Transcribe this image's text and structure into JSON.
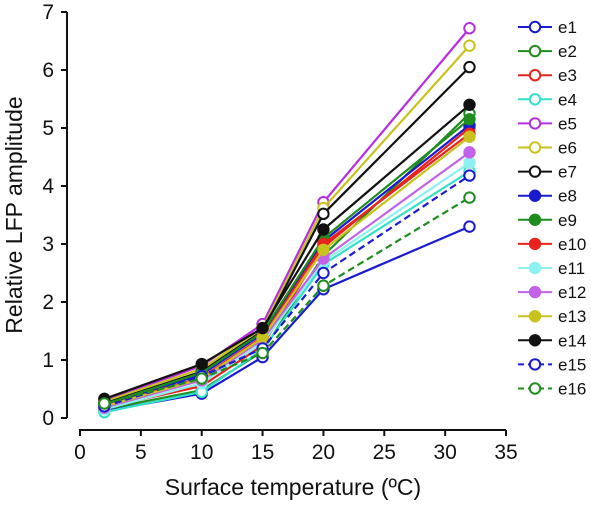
{
  "chart_data": {
    "type": "line",
    "xlabel": "Surface temperature (ºC)",
    "ylabel": "Relative LFP amplitude",
    "xlim": [
      0,
      35
    ],
    "ylim": [
      0,
      7
    ],
    "xticks": [
      "0",
      "5",
      "10",
      "15",
      "20",
      "25",
      "30",
      "35"
    ],
    "yticks": [
      "0",
      "1",
      "2",
      "3",
      "4",
      "5",
      "6",
      "7"
    ],
    "grid": false,
    "legend_position": "right",
    "x": [
      2,
      10,
      15,
      20,
      32
    ],
    "series": [
      {
        "name": "e1",
        "color": "#1a1ad0",
        "marker": "open",
        "dashed": false,
        "values": [
          0.12,
          0.42,
          1.05,
          2.22,
          3.3
        ]
      },
      {
        "name": "e2",
        "color": "#1e8c1e",
        "marker": "open",
        "dashed": false,
        "values": [
          0.15,
          0.48,
          1.15,
          2.8,
          5.25
        ]
      },
      {
        "name": "e3",
        "color": "#e8231e",
        "marker": "open",
        "dashed": false,
        "values": [
          0.18,
          0.55,
          1.25,
          2.95,
          5.0
        ]
      },
      {
        "name": "e4",
        "color": "#33e0c8",
        "marker": "open",
        "dashed": false,
        "values": [
          0.1,
          0.45,
          1.18,
          2.65,
          4.25
        ]
      },
      {
        "name": "e5",
        "color": "#b52ee0",
        "marker": "open",
        "dashed": false,
        "values": [
          0.3,
          0.9,
          1.62,
          3.72,
          6.72
        ]
      },
      {
        "name": "e6",
        "color": "#c9c21e",
        "marker": "open",
        "dashed": false,
        "values": [
          0.28,
          0.85,
          1.55,
          3.62,
          6.42
        ]
      },
      {
        "name": "e7",
        "color": "#111111",
        "marker": "open",
        "dashed": false,
        "values": [
          0.25,
          0.8,
          1.5,
          3.52,
          6.05
        ]
      },
      {
        "name": "e8",
        "color": "#1a1ad0",
        "marker": "filled",
        "dashed": false,
        "values": [
          0.22,
          0.75,
          1.45,
          3.05,
          5.05
        ]
      },
      {
        "name": "e9",
        "color": "#1e8c1e",
        "marker": "filled",
        "dashed": false,
        "values": [
          0.24,
          0.78,
          1.48,
          3.1,
          5.15
        ]
      },
      {
        "name": "e10",
        "color": "#e8231e",
        "marker": "filled",
        "dashed": false,
        "values": [
          0.2,
          0.7,
          1.4,
          3.0,
          4.9
        ]
      },
      {
        "name": "e11",
        "color": "#8ef0f0",
        "marker": "filled",
        "dashed": false,
        "values": [
          0.15,
          0.6,
          1.3,
          2.7,
          4.4
        ]
      },
      {
        "name": "e12",
        "color": "#c262e8",
        "marker": "filled",
        "dashed": false,
        "values": [
          0.18,
          0.65,
          1.35,
          2.75,
          4.58
        ]
      },
      {
        "name": "e13",
        "color": "#c9c21e",
        "marker": "filled",
        "dashed": false,
        "values": [
          0.2,
          0.68,
          1.38,
          2.9,
          4.85
        ]
      },
      {
        "name": "e14",
        "color": "#111111",
        "marker": "filled",
        "dashed": false,
        "values": [
          0.33,
          0.93,
          1.55,
          3.25,
          5.4
        ]
      },
      {
        "name": "e15",
        "color": "#1a1ad0",
        "marker": "open",
        "dashed": true,
        "values": [
          0.2,
          0.72,
          1.2,
          2.5,
          4.18
        ]
      },
      {
        "name": "e16",
        "color": "#1e8c1e",
        "marker": "open",
        "dashed": true,
        "values": [
          0.25,
          0.68,
          1.12,
          2.28,
          3.8
        ]
      }
    ]
  }
}
